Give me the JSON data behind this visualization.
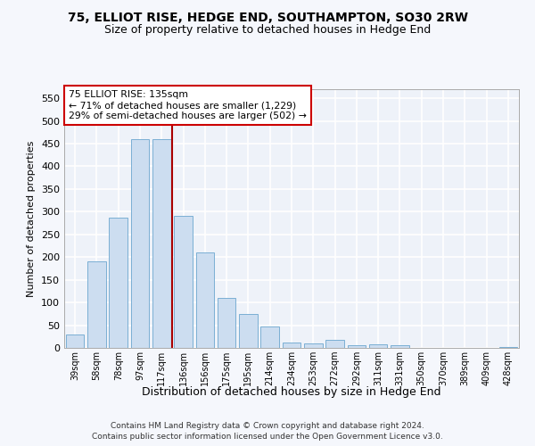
{
  "title": "75, ELLIOT RISE, HEDGE END, SOUTHAMPTON, SO30 2RW",
  "subtitle": "Size of property relative to detached houses in Hedge End",
  "xlabel": "Distribution of detached houses by size in Hedge End",
  "ylabel": "Number of detached properties",
  "categories": [
    "39sqm",
    "58sqm",
    "78sqm",
    "97sqm",
    "117sqm",
    "136sqm",
    "156sqm",
    "175sqm",
    "195sqm",
    "214sqm",
    "234sqm",
    "253sqm",
    "272sqm",
    "292sqm",
    "311sqm",
    "331sqm",
    "350sqm",
    "370sqm",
    "389sqm",
    "409sqm",
    "428sqm"
  ],
  "values": [
    30,
    190,
    287,
    460,
    460,
    290,
    210,
    110,
    75,
    47,
    12,
    10,
    18,
    6,
    8,
    5,
    0,
    0,
    0,
    0,
    2
  ],
  "bar_color": "#ccddf0",
  "bar_edge_color": "#7aafd4",
  "vline_x": 4.5,
  "vline_color": "#aa0000",
  "annotation_text": "75 ELLIOT RISE: 135sqm\n← 71% of detached houses are smaller (1,229)\n29% of semi-detached houses are larger (502) →",
  "annotation_box_color": "#ffffff",
  "annotation_box_edge": "#cc0000",
  "ylim": [
    0,
    570
  ],
  "yticks": [
    0,
    50,
    100,
    150,
    200,
    250,
    300,
    350,
    400,
    450,
    500,
    550
  ],
  "background_color": "#eef2f9",
  "grid_color": "#ffffff",
  "footer1": "Contains HM Land Registry data © Crown copyright and database right 2024.",
  "footer2": "Contains public sector information licensed under the Open Government Licence v3.0."
}
